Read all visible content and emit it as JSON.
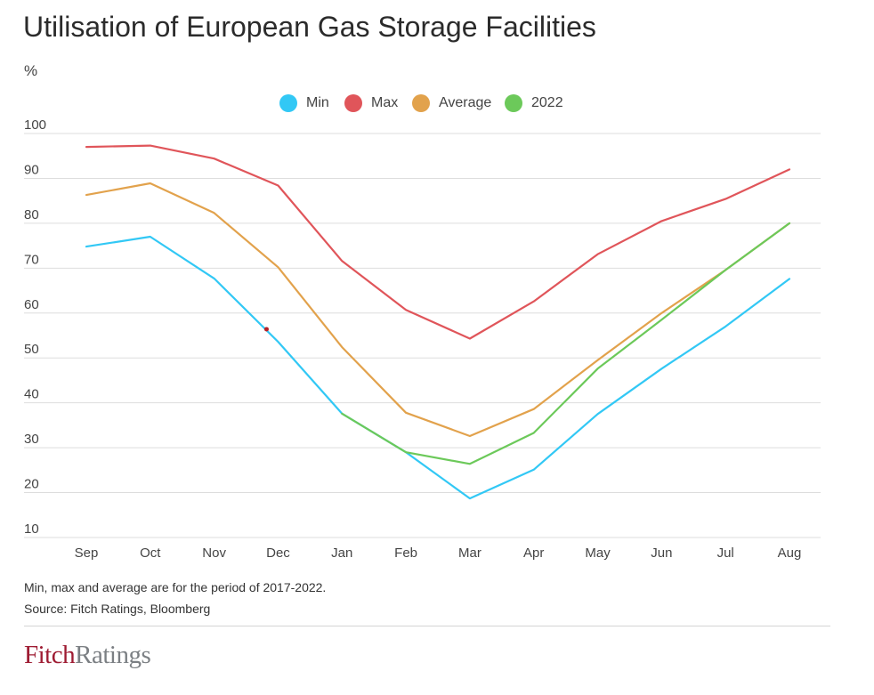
{
  "title": "Utilisation of European Gas Storage Facilities",
  "unit_label": "%",
  "legend": [
    {
      "label": "Min",
      "color": "#32c8f5"
    },
    {
      "label": "Max",
      "color": "#e0555a"
    },
    {
      "label": "Average",
      "color": "#e2a24c"
    },
    {
      "label": "2022",
      "color": "#6cc95a"
    }
  ],
  "notes": {
    "line1": "Min, max and average are for the period of 2017-2022.",
    "line2": "Source: Fitch Ratings,  Bloomberg"
  },
  "logo": {
    "part1": "Fitch",
    "part2": "Ratings"
  },
  "chart_data": {
    "type": "line",
    "title": "Utilisation of European Gas Storage Facilities",
    "ylabel": "%",
    "categories": [
      "Sep",
      "Oct",
      "Nov",
      "Dec",
      "Jan",
      "Feb",
      "Mar",
      "Apr",
      "May",
      "Jun",
      "Jul",
      "Aug"
    ],
    "ylim": [
      10,
      100
    ],
    "yticks": [
      100,
      90,
      80,
      70,
      60,
      50,
      40,
      30,
      20,
      10
    ],
    "grid": true,
    "legend_position": "top-center",
    "series": [
      {
        "name": "Min",
        "color": "#32c8f5",
        "values": [
          74.8,
          77.0,
          67.7,
          53.6,
          37.6,
          29.0,
          18.7,
          25.1,
          37.5,
          47.6,
          57.0,
          67.6
        ]
      },
      {
        "name": "Max",
        "color": "#e0555a",
        "values": [
          97.0,
          97.3,
          94.4,
          88.4,
          71.6,
          60.7,
          54.3,
          62.6,
          73.1,
          80.5,
          85.4,
          92.0
        ]
      },
      {
        "name": "Average",
        "color": "#e2a24c",
        "values": [
          86.3,
          88.9,
          82.3,
          70.2,
          52.4,
          37.8,
          32.6,
          38.6,
          49.5,
          60.0,
          69.6,
          80.0
        ]
      },
      {
        "name": "2022",
        "color": "#6cc95a",
        "values": [
          null,
          null,
          null,
          null,
          37.6,
          29.0,
          26.4,
          33.3,
          47.6,
          58.5,
          69.6,
          80.0
        ]
      }
    ],
    "annotations": [
      {
        "type": "point-marker",
        "x": "Dec",
        "y": 56.4,
        "color": "#b52026"
      }
    ]
  }
}
